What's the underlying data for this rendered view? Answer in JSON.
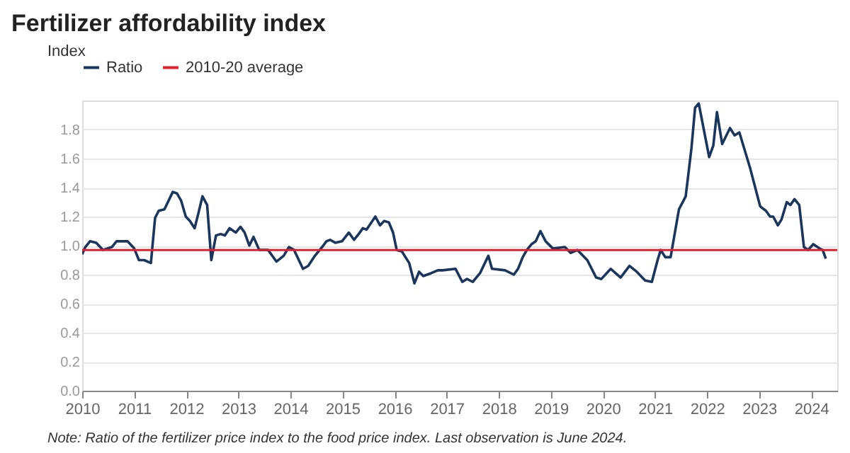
{
  "chart_data": {
    "type": "line",
    "title": "Fertilizer affordability index",
    "ylabel": "Index",
    "xlim": [
      2010,
      2024.5
    ],
    "xticks": [
      2010,
      2011,
      2012,
      2013,
      2014,
      2015,
      2016,
      2017,
      2018,
      2019,
      2020,
      2021,
      2022,
      2023,
      2024
    ],
    "ylim": [
      0,
      2.0
    ],
    "yticks": [
      {
        "value": 0,
        "label": "0.0"
      },
      0.2,
      0.4,
      0.6,
      0.8,
      {
        "value": 1,
        "label": "1.0"
      },
      1.2,
      1.4,
      1.6,
      1.8
    ],
    "grid": "y",
    "legend": "top left",
    "line_style": "solid",
    "marker": "none",
    "series": [
      {
        "name": "Ratio",
        "color": "#1b365d",
        "x": [
          2010.0,
          2010.06,
          2010.15,
          2010.27,
          2010.4,
          2010.57,
          2010.66,
          2010.8,
          2010.87,
          2011.0,
          2011.09,
          2011.19,
          2011.32,
          2011.4,
          2011.47,
          2011.58,
          2011.74,
          2011.82,
          2011.9,
          2011.99,
          2012.07,
          2012.16,
          2012.23,
          2012.31,
          2012.4,
          2012.48,
          2012.57,
          2012.66,
          2012.74,
          2012.83,
          2012.95,
          2013.04,
          2013.12,
          2013.21,
          2013.29,
          2013.4,
          2013.57,
          2013.73,
          2013.87,
          2013.97,
          2014.07,
          2014.24,
          2014.34,
          2014.47,
          2014.63,
          2014.69,
          2014.76,
          2014.86,
          2014.99,
          2015.12,
          2015.22,
          2015.31,
          2015.39,
          2015.46,
          2015.63,
          2015.72,
          2015.8,
          2015.89,
          2015.97,
          2016.04,
          2016.14,
          2016.28,
          2016.38,
          2016.47,
          2016.55,
          2016.7,
          2016.83,
          2016.92,
          2017.17,
          2017.3,
          2017.39,
          2017.5,
          2017.64,
          2017.8,
          2017.87,
          2018.12,
          2018.29,
          2018.37,
          2018.46,
          2018.54,
          2018.63,
          2018.71,
          2018.8,
          2018.9,
          2019.04,
          2019.27,
          2019.38,
          2019.51,
          2019.7,
          2019.87,
          2019.97,
          2020.15,
          2020.34,
          2020.51,
          2020.65,
          2020.81,
          2020.94,
          2021.05,
          2021.11,
          2021.2,
          2021.3,
          2021.46,
          2021.59,
          2021.7,
          2021.77,
          2021.84,
          2022.04,
          2022.12,
          2022.19,
          2022.29,
          2022.44,
          2022.53,
          2022.62,
          2022.83,
          2023.02,
          2023.13,
          2023.21,
          2023.27,
          2023.36,
          2023.43,
          2023.53,
          2023.6,
          2023.68,
          2023.77,
          2023.86,
          2023.94,
          2024.04,
          2024.16,
          2024.22,
          2024.28
        ],
        "values": [
          0.94,
          0.99,
          1.03,
          1.02,
          0.97,
          0.99,
          1.03,
          1.03,
          1.03,
          0.98,
          0.9,
          0.9,
          0.88,
          1.19,
          1.24,
          1.25,
          1.37,
          1.36,
          1.31,
          1.2,
          1.17,
          1.12,
          1.22,
          1.34,
          1.28,
          0.9,
          1.07,
          1.08,
          1.07,
          1.12,
          1.09,
          1.13,
          1.09,
          1.0,
          1.06,
          0.97,
          0.97,
          0.89,
          0.93,
          0.99,
          0.97,
          0.84,
          0.86,
          0.93,
          1.0,
          1.03,
          1.04,
          1.02,
          1.03,
          1.09,
          1.04,
          1.08,
          1.12,
          1.11,
          1.2,
          1.14,
          1.17,
          1.16,
          1.09,
          0.97,
          0.96,
          0.88,
          0.74,
          0.82,
          0.79,
          0.81,
          0.83,
          0.83,
          0.84,
          0.75,
          0.77,
          0.75,
          0.81,
          0.93,
          0.84,
          0.83,
          0.8,
          0.84,
          0.92,
          0.97,
          1.01,
          1.03,
          1.1,
          1.03,
          0.98,
          0.99,
          0.95,
          0.97,
          0.9,
          0.78,
          0.77,
          0.84,
          0.78,
          0.86,
          0.82,
          0.76,
          0.75,
          0.9,
          0.97,
          0.92,
          0.92,
          1.25,
          1.34,
          1.67,
          1.95,
          1.98,
          1.61,
          1.69,
          1.92,
          1.7,
          1.81,
          1.76,
          1.78,
          1.53,
          1.27,
          1.24,
          1.2,
          1.2,
          1.14,
          1.18,
          1.3,
          1.28,
          1.32,
          1.28,
          0.99,
          0.97,
          1.01,
          0.98,
          0.97,
          0.91
        ]
      }
    ],
    "ref_lines": [
      {
        "axis": "y",
        "value": 0.97,
        "label": "2010-20 average",
        "color": "#e0202c"
      }
    ],
    "annotations": [
      "Note: Ratio of the fertilizer price index to the food price index. Last observation is June 2024."
    ]
  }
}
